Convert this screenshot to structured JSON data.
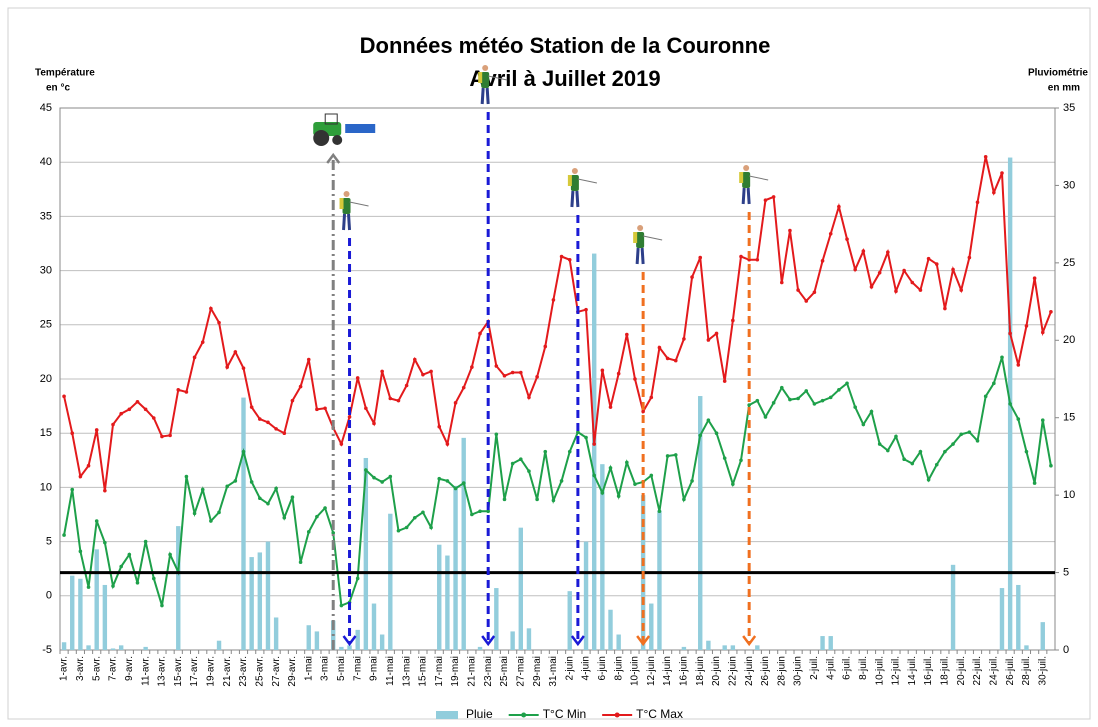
{
  "chart_data": {
    "type": "combo",
    "title": [
      "Données météo Station de la Couronne",
      "Avril à Juillet 2019"
    ],
    "ylabel": [
      "Température",
      "en °c"
    ],
    "y2label": [
      "Pluviométrie",
      "en mm"
    ],
    "categories": [
      "1-avr.",
      null,
      "3-avr.",
      null,
      "5-avr.",
      null,
      "7-avr.",
      null,
      "9-avr.",
      null,
      "11-avr.",
      null,
      "13-avr.",
      null,
      "15-avr.",
      null,
      "17-avr.",
      null,
      "19-avr.",
      null,
      "21-avr.",
      null,
      "23-avr.",
      null,
      "25-avr.",
      null,
      "27-avr.",
      null,
      "29-avr.",
      null,
      "1-mai",
      null,
      "3-mai",
      null,
      "5-mai",
      null,
      "7-mai",
      null,
      "9-mai",
      null,
      "11-mai",
      null,
      "13-mai",
      null,
      "15-mai",
      null,
      "17-mai",
      null,
      "19-mai",
      null,
      "21-mai",
      null,
      "23-mai",
      null,
      "25-mai",
      null,
      "27-mai",
      null,
      "29-mai",
      null,
      "31-mai",
      null,
      "2-juin",
      null,
      "4-juin",
      null,
      "6-juin",
      null,
      "8-juin",
      null,
      "10-juin",
      null,
      "12-juin",
      null,
      "14-juin",
      null,
      "16-juin",
      null,
      "18-juin",
      null,
      "20-juin",
      null,
      "22-juin",
      null,
      "24-juin",
      null,
      "26-juin",
      null,
      "28-juin",
      null,
      "30-juin",
      null,
      "2-juil.",
      null,
      "4-juil.",
      null,
      "6-juil.",
      null,
      "8-juil.",
      null,
      "10-juil.",
      null,
      "12-juil.",
      null,
      "14-juil.",
      null,
      "16-juil.",
      null,
      "18-juil.",
      null,
      "20-juil.",
      null,
      "22-juil.",
      null,
      "24-juil.",
      null,
      "26-juil.",
      null,
      "28-juil.",
      null,
      "30-juil.",
      null
    ],
    "series": [
      {
        "name": "Pluie",
        "type": "bar",
        "axis": "y2",
        "color": "#92cddc",
        "values": [
          0.5,
          4.8,
          4.6,
          0.3,
          6.5,
          4.2,
          0.1,
          0.3,
          0,
          0,
          0.2,
          0,
          0,
          0,
          8,
          0,
          0,
          0,
          0,
          0.6,
          0,
          0,
          16.3,
          6,
          6.3,
          7,
          2.1,
          0,
          0,
          0,
          1.6,
          1.2,
          0,
          1.9,
          0.2,
          0.3,
          1.3,
          12.4,
          3,
          1,
          8.8,
          0,
          0,
          0,
          0,
          0,
          6.8,
          6.1,
          10.6,
          13.7,
          0,
          0.2,
          0,
          4,
          0,
          1.2,
          7.9,
          1.4,
          0,
          0,
          0,
          0,
          3.8,
          0,
          7,
          25.6,
          12,
          2.6,
          1,
          0,
          0,
          10,
          3,
          9,
          0,
          0,
          0.2,
          0,
          16.4,
          0.6,
          0,
          0.3,
          0.3,
          0,
          0,
          0.3,
          0,
          0,
          0,
          0,
          0,
          0,
          0,
          0.9,
          0.9,
          0,
          0,
          0,
          0,
          0,
          0,
          0,
          0,
          0,
          0,
          0,
          0,
          0,
          0,
          5.5,
          0,
          0,
          0,
          0,
          0,
          4,
          31.8,
          4.2,
          0.3,
          0,
          1.8,
          0
        ]
      },
      {
        "name": "T°C Min",
        "type": "line",
        "color": "#1ea04a",
        "values": [
          5.6,
          9.8,
          4.1,
          0.8,
          6.9,
          4.9,
          0.9,
          2.7,
          3.8,
          1.2,
          5,
          1.6,
          -0.9,
          3.8,
          2.2,
          11,
          7.6,
          9.8,
          6.9,
          7.7,
          10.1,
          10.6,
          13.3,
          10.5,
          9,
          8.5,
          9.9,
          7.2,
          9.1,
          3.1,
          5.9,
          7.3,
          8.1,
          5.8,
          -0.9,
          -0.6,
          1.6,
          11.6,
          10.9,
          10.5,
          11,
          6,
          6.3,
          7.2,
          7.7,
          6.3,
          10.8,
          10.6,
          9.9,
          10.4,
          7.5,
          7.8,
          7.8,
          14.9,
          8.9,
          12.2,
          12.6,
          11.5,
          8.9,
          13.3,
          8.8,
          10.6,
          13.3,
          15.1,
          14.6,
          11.1,
          9.5,
          11.8,
          9.2,
          12.3,
          10.3,
          10.5,
          11.1,
          7.8,
          12.9,
          13,
          8.9,
          10.6,
          14.8,
          16.2,
          15,
          12.7,
          10.3,
          12.5,
          17.6,
          18,
          16.5,
          17.8,
          19.2,
          18.1,
          18.2,
          18.9,
          17.7,
          18,
          18.3,
          19,
          19.6,
          17.4,
          15.8,
          17,
          14,
          13.4,
          14.7,
          12.6,
          12.2,
          13.3,
          10.7,
          12.1,
          13.3,
          14,
          14.9,
          15.1,
          14.3,
          18.4,
          19.6,
          22,
          17.7,
          16.3,
          13.3,
          10.4,
          16.2,
          12
        ]
      },
      {
        "name": "T°C Max",
        "type": "line",
        "color": "#e31a1c",
        "values": [
          18.4,
          15,
          11,
          12,
          15.3,
          9.7,
          15.8,
          16.8,
          17.2,
          17.9,
          17.2,
          16.4,
          14.7,
          14.8,
          19,
          18.8,
          22,
          23.4,
          26.5,
          25.2,
          21.1,
          22.5,
          21,
          17.4,
          16.3,
          16,
          15.4,
          15,
          18,
          19.3,
          21.8,
          17.2,
          17.3,
          15.5,
          14,
          16.5,
          20.1,
          17.3,
          15.9,
          20.7,
          18.2,
          18,
          19.4,
          21.8,
          20.4,
          20.7,
          15.6,
          14,
          17.8,
          19.2,
          21.1,
          24.2,
          25.3,
          21.2,
          20.3,
          20.6,
          20.6,
          18.3,
          20.2,
          23,
          27.3,
          31.3,
          31,
          26.2,
          26.4,
          14,
          20.8,
          17.4,
          20.5,
          24.1,
          20,
          17,
          18.3,
          22.9,
          21.9,
          21.7,
          23.7,
          29.4,
          31.2,
          23.6,
          24.2,
          19.8,
          25.4,
          31.3,
          31,
          31,
          36.5,
          36.8,
          28.9,
          33.7,
          28.2,
          27.2,
          28,
          30.9,
          33.4,
          35.9,
          32.9,
          30.1,
          31.8,
          28.5,
          29.8,
          31.7,
          28.1,
          30,
          28.9,
          28.2,
          31.1,
          30.6,
          26.5,
          30.1,
          28.2,
          31.2,
          36.3,
          40.5,
          37.2,
          39,
          24.2,
          21.3,
          24.9,
          29.3,
          24.3,
          26.2
        ]
      }
    ],
    "ylim": [
      -5,
      45
    ],
    "yticks": [
      -5,
      0,
      5,
      10,
      15,
      20,
      25,
      30,
      35,
      40,
      45
    ],
    "y2lim": [
      0,
      35
    ],
    "y2ticks": [
      0,
      5,
      10,
      15,
      20,
      25,
      30,
      35
    ],
    "reference_lines": [
      {
        "axis": "y2",
        "value": 5,
        "color": "#000000"
      }
    ],
    "grid": true,
    "legend": "bottom"
  }
}
